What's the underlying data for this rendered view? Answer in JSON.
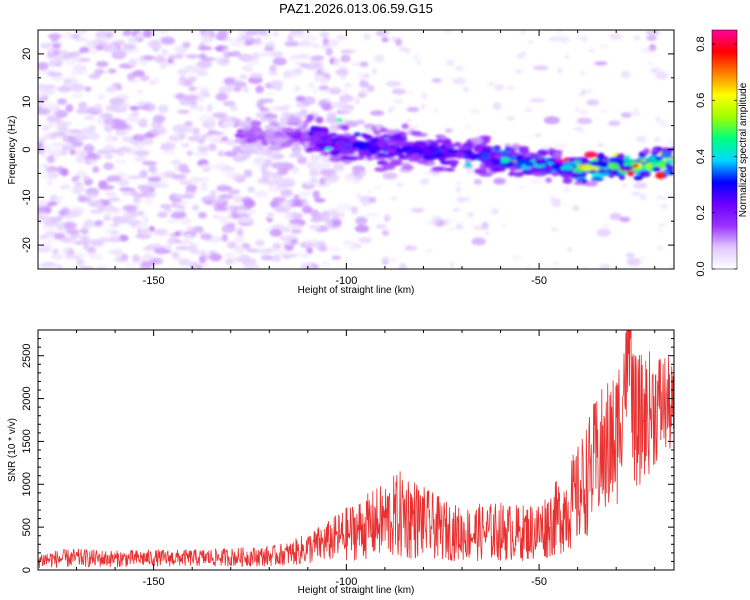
{
  "title": "PAZ1.2026.013.06.59.G15",
  "chart_data": [
    {
      "type": "heatmap",
      "title": "PAZ1.2026.013.06.59.G15",
      "xlabel": "Height of straight line (km)",
      "ylabel": "Frequency (Hz)",
      "xlim": [
        -180,
        -15
      ],
      "ylim": [
        -25,
        25
      ],
      "xticks": [
        -150,
        -100,
        -50
      ],
      "yticks": [
        -20,
        -10,
        0,
        10,
        20
      ],
      "colorbar": {
        "label": "Normalized spectral amplitude",
        "range": [
          0.0,
          0.85
        ],
        "ticks": [
          0.0,
          0.2,
          0.4,
          0.6,
          0.8
        ],
        "colormap": [
          "#ffffff",
          "#e0c8ff",
          "#9b30ff",
          "#6a00ff",
          "#0000ff",
          "#00d8ff",
          "#00ff80",
          "#a0ff00",
          "#ffff00",
          "#ff8000",
          "#ff0000",
          "#ff00a0"
        ]
      },
      "ridge": {
        "description_points": [
          {
            "x": -125,
            "y": 3
          },
          {
            "x": -110,
            "y": 3
          },
          {
            "x": -100,
            "y": 1
          },
          {
            "x": -85,
            "y": 0
          },
          {
            "x": -70,
            "y": -1
          },
          {
            "x": -60,
            "y": -2
          },
          {
            "x": -50,
            "y": -3
          },
          {
            "x": -40,
            "y": -4
          },
          {
            "x": -30,
            "y": -3.5
          },
          {
            "x": -20,
            "y": -3
          },
          {
            "x": -15,
            "y": -2.5
          }
        ],
        "peak_amplitude": 0.85
      }
    },
    {
      "type": "line",
      "xlabel": "Height of straight line (km)",
      "ylabel": "SNR (10 * v/v)",
      "xlim": [
        -180,
        -15
      ],
      "ylim": [
        0,
        2800
      ],
      "xticks": [
        -150,
        -100,
        -50
      ],
      "yticks": [
        0,
        500,
        1000,
        1500,
        2000,
        2500
      ],
      "series": [
        {
          "name": "SNR",
          "color": "#e83030",
          "x": [
            -180,
            -170,
            -160,
            -150,
            -140,
            -130,
            -120,
            -115,
            -110,
            -105,
            -100,
            -95,
            -90,
            -85,
            -80,
            -75,
            -70,
            -65,
            -60,
            -55,
            -50,
            -45,
            -40,
            -35,
            -30,
            -27,
            -25,
            -20,
            -17,
            -15
          ],
          "y": [
            120,
            140,
            130,
            140,
            140,
            150,
            160,
            190,
            250,
            330,
            420,
            500,
            580,
            650,
            560,
            470,
            420,
            440,
            450,
            430,
            460,
            620,
            850,
            1300,
            1500,
            2500,
            1700,
            1900,
            1950,
            1850
          ],
          "noise_amplitude": [
            100,
            110,
            100,
            100,
            100,
            110,
            120,
            140,
            190,
            240,
            320,
            380,
            450,
            550,
            420,
            360,
            320,
            340,
            350,
            330,
            360,
            450,
            600,
            750,
            850,
            750,
            800,
            700,
            600,
            500
          ]
        }
      ]
    }
  ]
}
